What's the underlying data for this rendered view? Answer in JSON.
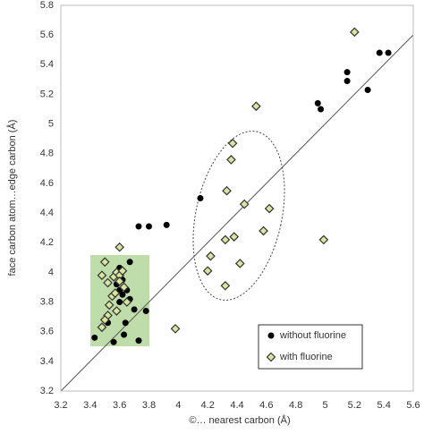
{
  "chart_data": {
    "type": "scatter",
    "x_label": "©… nearest carbon (Å)",
    "y_label": "face carbon atom…edge carbon (Å)",
    "xlim": [
      3.2,
      5.6
    ],
    "ylim": [
      3.2,
      5.8
    ],
    "xticks": [
      3.2,
      3.4,
      3.6,
      3.8,
      4,
      4.2,
      4.4,
      4.6,
      4.8,
      5,
      5.2,
      5.4,
      5.6
    ],
    "yticks": [
      3.2,
      3.4,
      3.6,
      3.8,
      4,
      4.2,
      4.4,
      4.6,
      4.8,
      5,
      5.2,
      5.4,
      5.6,
      5.8
    ],
    "grid": false,
    "legend": "bottom-right",
    "series": [
      {
        "name": "without fluorine",
        "color": "#000000",
        "marker": "circle",
        "x": [
          5.37,
          5.43,
          5.15,
          5.15,
          5.29,
          4.95,
          4.97,
          4.15,
          3.73,
          3.8,
          3.92,
          3.43,
          3.52,
          3.56,
          3.6,
          3.62,
          3.6,
          3.65,
          3.67,
          3.67,
          3.58,
          3.62,
          3.64,
          3.63,
          3.73,
          3.78,
          3.7,
          3.6
        ],
        "values": [
          5.48,
          5.48,
          5.35,
          5.29,
          5.23,
          5.14,
          5.1,
          4.5,
          4.31,
          4.31,
          4.32,
          3.56,
          3.66,
          3.53,
          3.88,
          3.95,
          4.03,
          3.88,
          3.82,
          4.07,
          3.92,
          3.85,
          3.66,
          3.58,
          3.54,
          3.74,
          3.75,
          3.8
        ]
      },
      {
        "name": "with fluorine",
        "color": "#d8e4a0",
        "marker": "diamond",
        "x": [
          5.2,
          4.53,
          4.37,
          4.36,
          4.33,
          4.45,
          4.62,
          4.38,
          4.32,
          4.58,
          4.99,
          4.22,
          4.2,
          4.42,
          4.32,
          3.98,
          3.6,
          3.5,
          3.48,
          3.52,
          3.56,
          3.58,
          3.6,
          3.62,
          3.55,
          3.6,
          3.63,
          3.53,
          3.58,
          3.52,
          3.5,
          3.48,
          3.65,
          3.57
        ],
        "values": [
          5.62,
          5.12,
          4.87,
          4.76,
          4.55,
          4.46,
          4.43,
          4.24,
          4.22,
          4.28,
          4.22,
          4.11,
          4.01,
          4.06,
          3.91,
          3.62,
          4.17,
          4.07,
          3.98,
          3.93,
          3.97,
          4.0,
          3.98,
          4.01,
          3.84,
          3.94,
          3.9,
          3.78,
          3.74,
          3.71,
          3.68,
          3.63,
          3.8,
          3.86
        ]
      }
    ]
  }
}
